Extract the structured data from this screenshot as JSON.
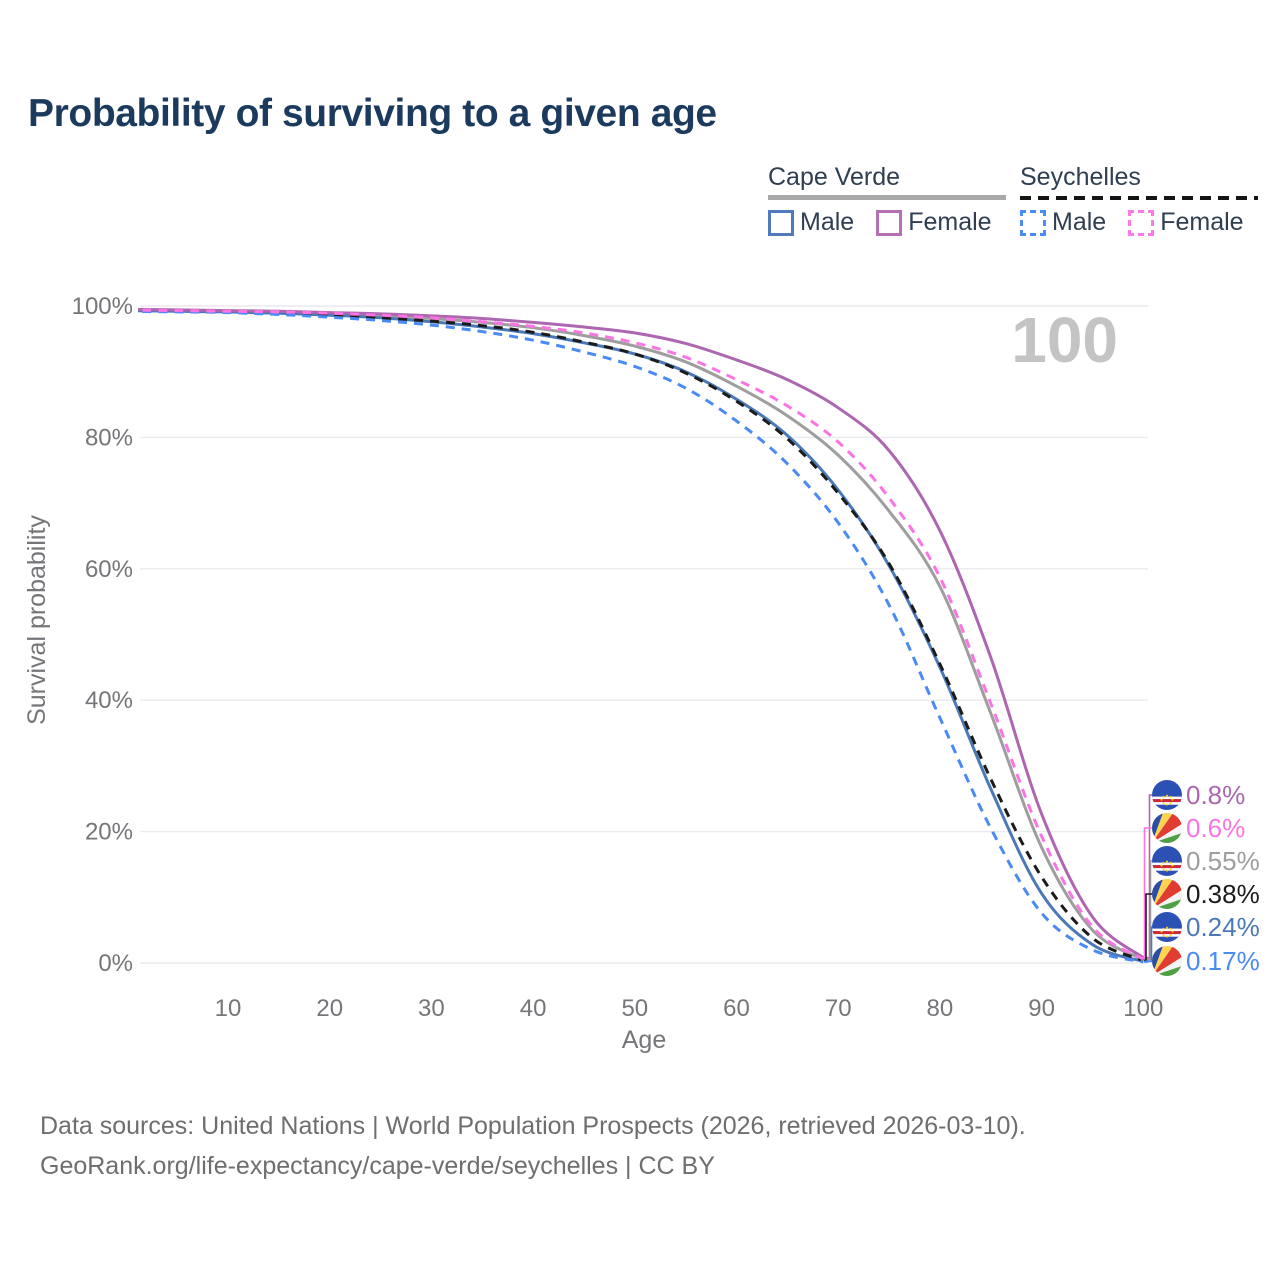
{
  "title": "Probability of surviving to a given age",
  "legend": {
    "groups": [
      {
        "label": "Cape Verde",
        "style": "solid",
        "items": [
          {
            "label": "Male"
          },
          {
            "label": "Female"
          }
        ]
      },
      {
        "label": "Seychelles",
        "style": "dashed",
        "items": [
          {
            "label": "Male"
          },
          {
            "label": "Female"
          }
        ]
      }
    ]
  },
  "footer": {
    "line1": "Data sources: United Nations | World Population Prospects (2026, retrieved 2026-03-10).",
    "line2": "GeoRank.org/life-expectancy/cape-verde/seychelles | CC BY"
  },
  "chart_data": {
    "type": "line",
    "title": "Probability of surviving to a given age",
    "xlabel": "Age",
    "ylabel": "Survival probability",
    "xlim": [
      0,
      100
    ],
    "ylim": [
      0,
      100
    ],
    "x_ticks": [
      10,
      20,
      30,
      40,
      50,
      60,
      70,
      80,
      90,
      100
    ],
    "y_ticks": [
      {
        "value": 0,
        "label": "0%"
      },
      {
        "value": 20,
        "label": "20%"
      },
      {
        "value": 40,
        "label": "40%"
      },
      {
        "value": 60,
        "label": "60%"
      },
      {
        "value": 80,
        "label": "80%"
      },
      {
        "value": 100,
        "label": "100%"
      }
    ],
    "grid": "horizontal-only",
    "watermark": "100",
    "ages": [
      0,
      5,
      10,
      15,
      20,
      25,
      30,
      35,
      40,
      45,
      50,
      55,
      60,
      65,
      70,
      75,
      80,
      85,
      90,
      95,
      100
    ],
    "series": [
      {
        "name": "Cape Verde Female",
        "country": "Cape Verde",
        "sex": "Female",
        "flag": "cape-verde",
        "color": "#ac67b0",
        "dash": false,
        "end_label": "0.8%",
        "values": [
          99.5,
          99.4,
          99.3,
          99.2,
          99.0,
          98.8,
          98.5,
          98.1,
          97.5,
          96.8,
          95.9,
          94.3,
          91.8,
          88.8,
          84.5,
          78.0,
          65.8,
          46.5,
          22.7,
          7.0,
          0.8
        ]
      },
      {
        "name": "Seychelles Female",
        "country": "Seychelles",
        "sex": "Female",
        "flag": "seychelles",
        "color": "#fb74e3",
        "dash": true,
        "end_label": "0.6%",
        "values": [
          99.4,
          99.3,
          99.2,
          99.1,
          98.9,
          98.6,
          98.2,
          97.6,
          96.9,
          95.9,
          94.4,
          92.2,
          88.8,
          84.8,
          79.3,
          70.8,
          58.7,
          39.5,
          19.3,
          5.5,
          0.6
        ]
      },
      {
        "name": "Cape Verde Both sexes",
        "country": "Cape Verde",
        "sex": "Both",
        "flag": "cape-verde",
        "color": "#9e9e9e",
        "dash": false,
        "end_label": "0.55%",
        "values": [
          99.4,
          99.3,
          99.2,
          99.0,
          98.8,
          98.5,
          98.1,
          97.5,
          96.7,
          95.5,
          93.9,
          91.5,
          87.8,
          83.3,
          77.3,
          68.8,
          57.3,
          38.0,
          17.6,
          5.0,
          0.55
        ]
      },
      {
        "name": "Seychelles Both sexes",
        "country": "Seychelles",
        "sex": "Both",
        "flag": "seychelles",
        "color": "#1b1b1b",
        "dash": true,
        "end_label": "0.38%",
        "values": [
          99.3,
          99.2,
          99.1,
          98.9,
          98.6,
          98.2,
          97.7,
          97.0,
          96.0,
          94.5,
          92.7,
          89.8,
          85.5,
          79.8,
          71.5,
          60.8,
          45.5,
          28.0,
          13.1,
          3.8,
          0.38
        ]
      },
      {
        "name": "Cape Verde Male",
        "country": "Cape Verde",
        "sex": "Male",
        "flag": "cape-verde",
        "color": "#4b79b7",
        "dash": false,
        "end_label": "0.24%",
        "values": [
          99.3,
          99.2,
          99.1,
          98.9,
          98.6,
          98.2,
          97.6,
          96.8,
          95.8,
          94.4,
          92.7,
          90.0,
          85.8,
          80.3,
          72.0,
          60.5,
          45.0,
          26.5,
          10.6,
          2.8,
          0.24
        ]
      },
      {
        "name": "Seychelles Male",
        "country": "Seychelles",
        "sex": "Male",
        "flag": "seychelles",
        "color": "#4a8af5",
        "dash": true,
        "end_label": "0.17%",
        "values": [
          99.2,
          99.1,
          99.0,
          98.7,
          98.3,
          97.8,
          97.1,
          96.1,
          94.8,
          93.0,
          90.8,
          87.5,
          82.5,
          76.0,
          67.0,
          54.5,
          37.3,
          20.5,
          7.6,
          2.0,
          0.17
        ]
      }
    ],
    "legend_position": "top-right"
  }
}
